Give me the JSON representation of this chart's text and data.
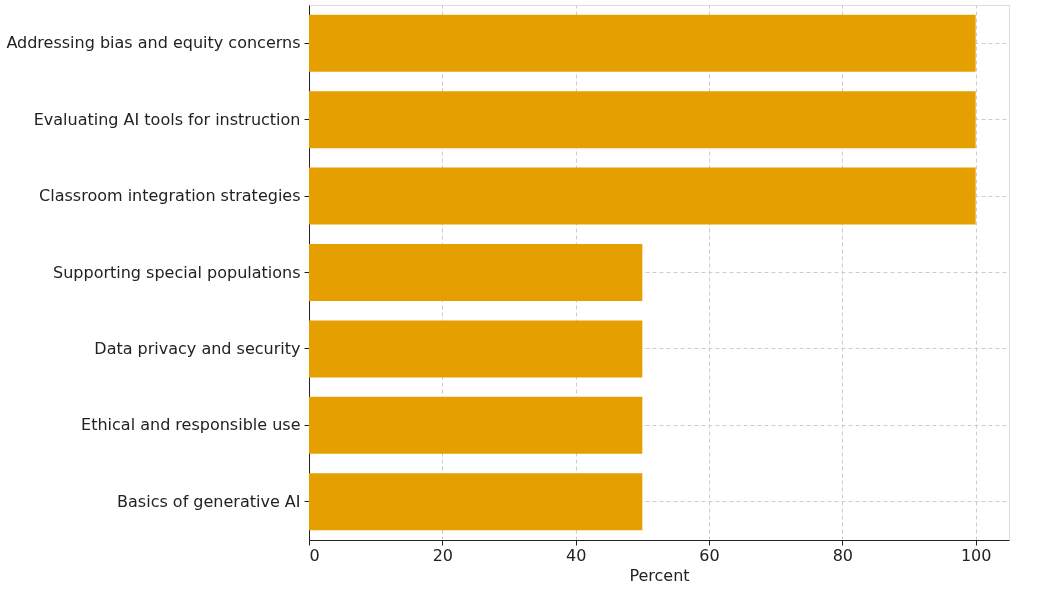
{
  "chart_data": {
    "type": "bar",
    "orientation": "horizontal",
    "xlabel": "Percent",
    "categories": [
      "Addressing bias and equity concerns",
      "Evaluating AI tools for instruction",
      "Classroom integration strategies",
      "Supporting special populations",
      "Data privacy and security",
      "Ethical and responsible use",
      "Basics of generative AI"
    ],
    "values": [
      100,
      100,
      100,
      50,
      50,
      50,
      50
    ],
    "color": "#e69f00",
    "xlim": [
      0,
      105
    ],
    "xticks": [
      0,
      20,
      40,
      60,
      80,
      100
    ],
    "grid": true
  }
}
